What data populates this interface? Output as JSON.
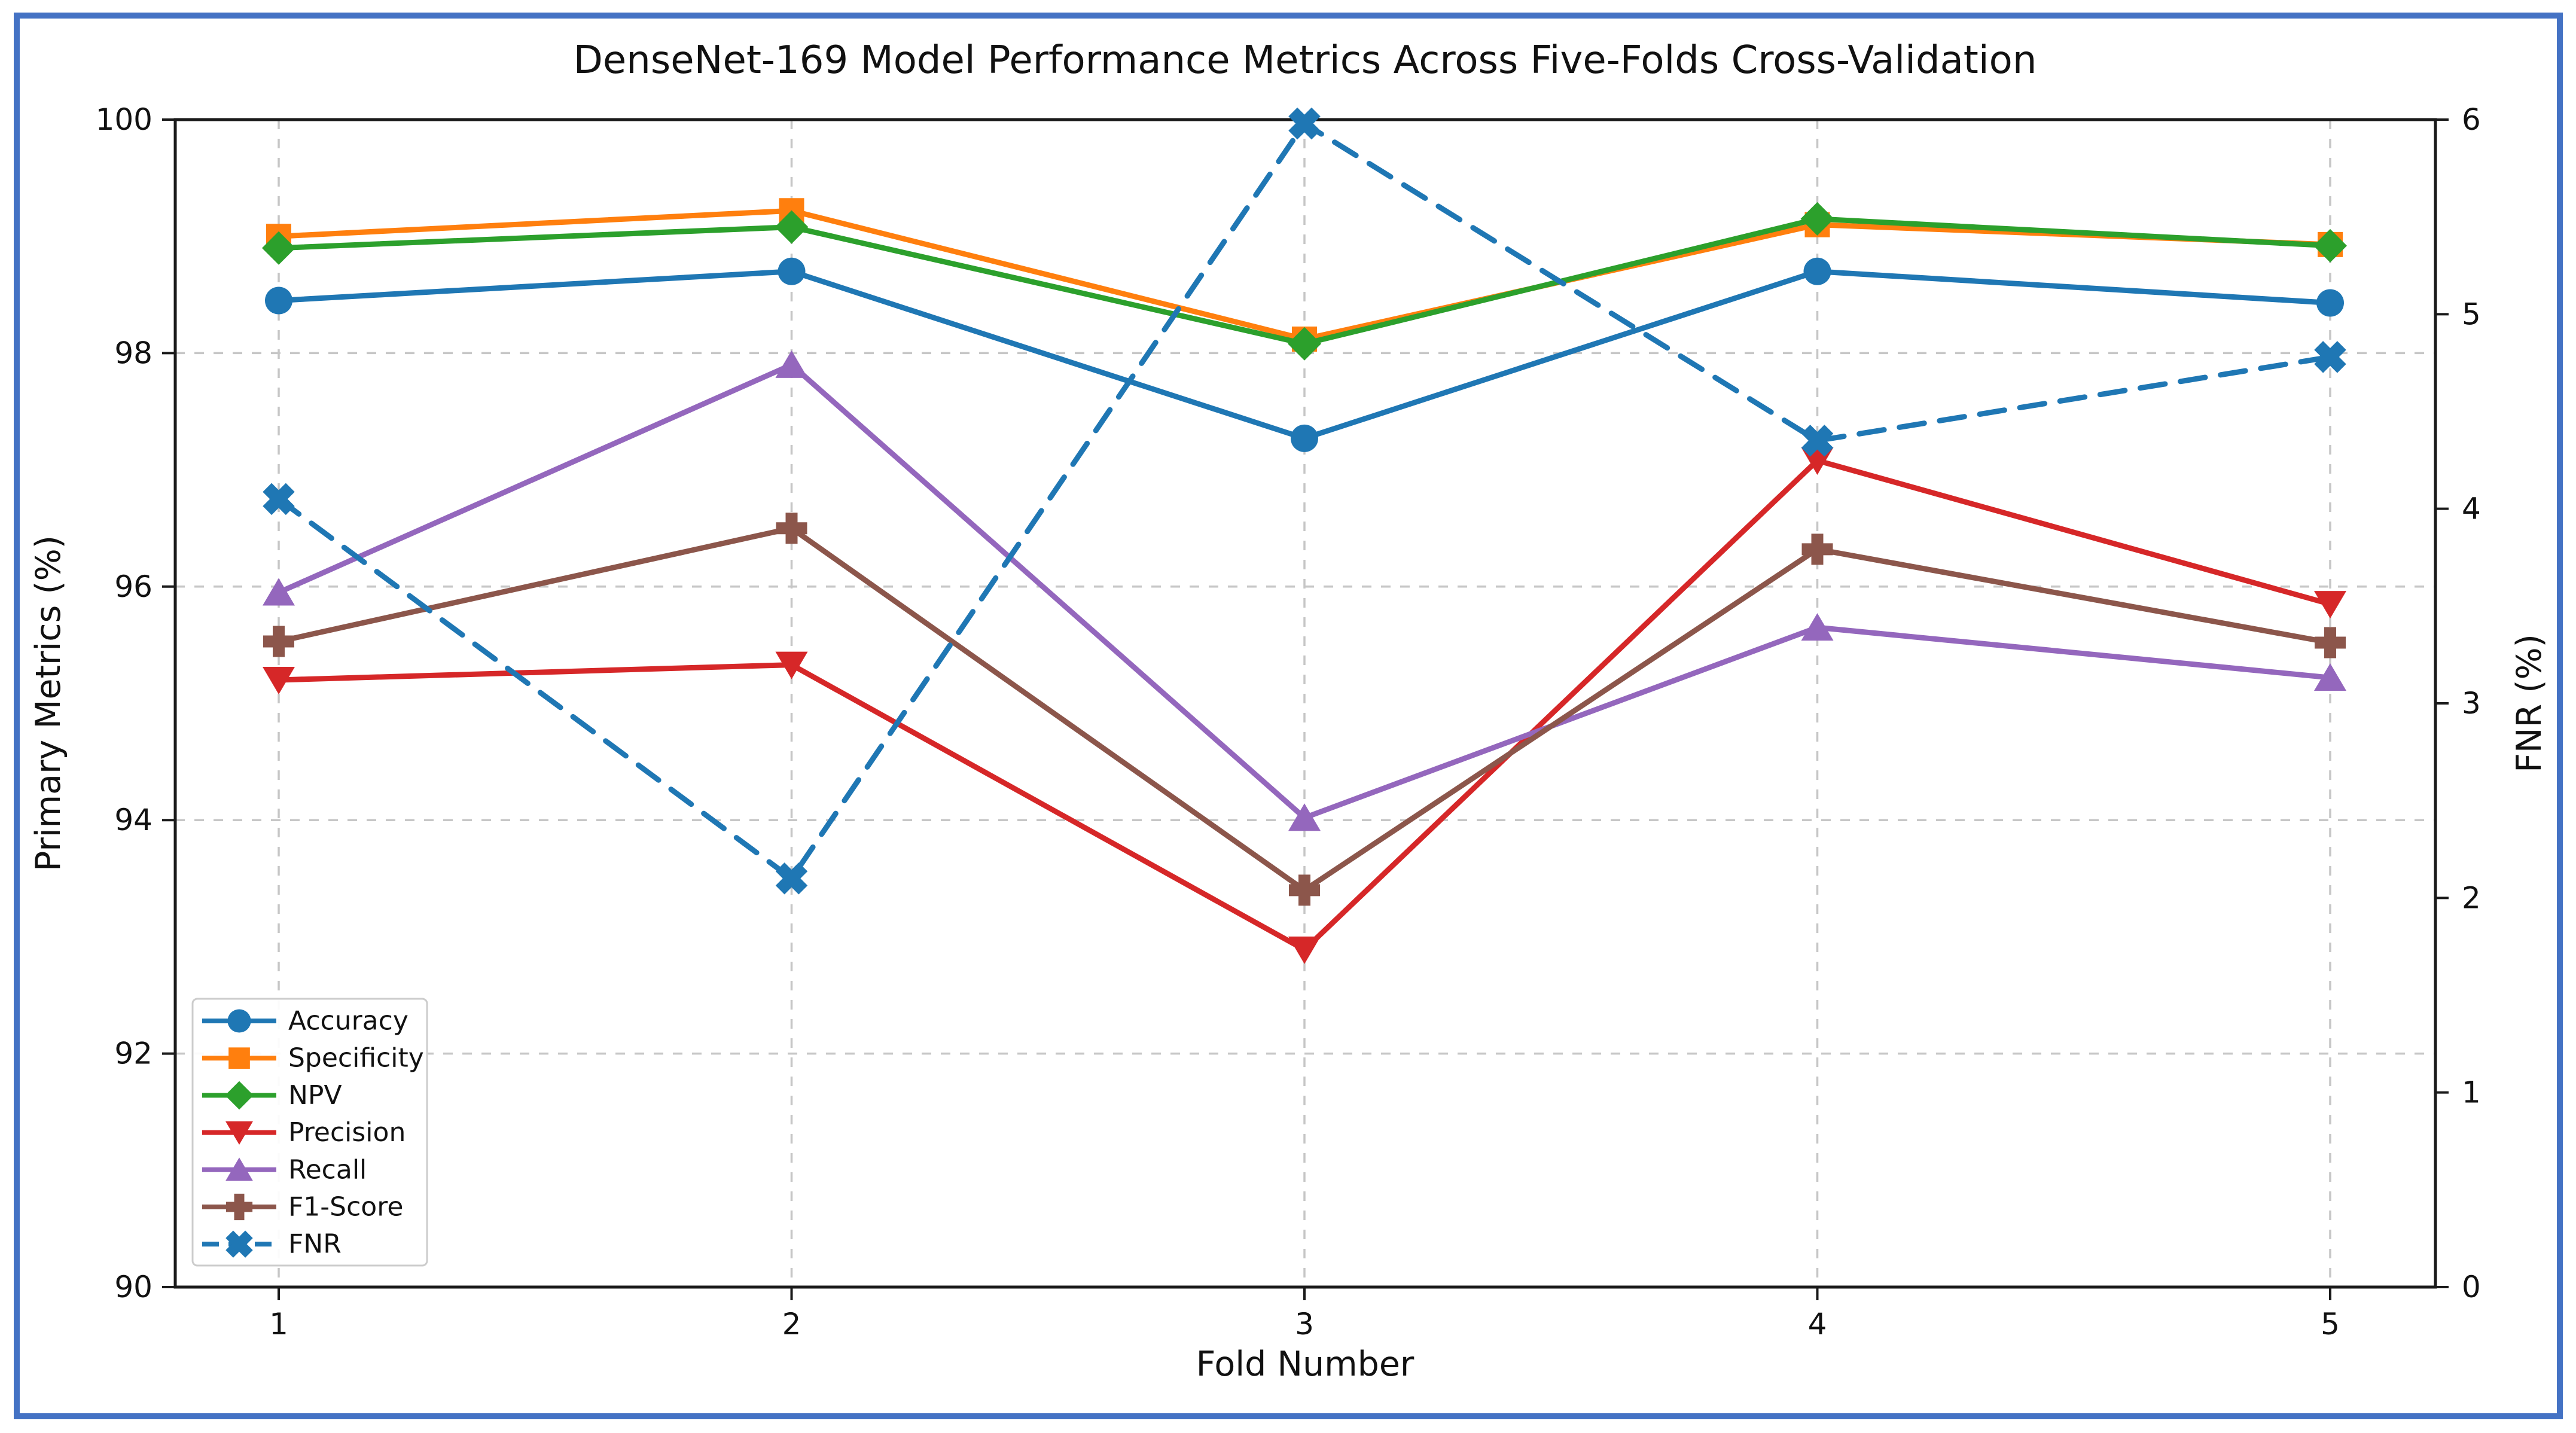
{
  "figure": {
    "background": "#ffffff",
    "border_color": "#4472c4",
    "spine_color": "#1a1a1a",
    "grid_color": "#c6c6c6"
  },
  "chart_data": {
    "type": "line",
    "title": "DenseNet-169 Model Performance Metrics Across Five-Folds Cross-Validation",
    "xlabel": "Fold Number",
    "ylabel_left": "Primary Metrics (%)",
    "ylabel_right": "FNR (%)",
    "x": [
      1,
      2,
      3,
      4,
      5
    ],
    "x_tick_labels": [
      "1",
      "2",
      "3",
      "4",
      "5"
    ],
    "ylim_left": [
      90,
      100
    ],
    "yticks_left": [
      90,
      92,
      94,
      96,
      98,
      100
    ],
    "ylim_right": [
      0,
      6
    ],
    "yticks_right": [
      0,
      1,
      2,
      3,
      4,
      5,
      6
    ],
    "grid": true,
    "legend_position": "lower-left",
    "series": [
      {
        "name": "Accuracy",
        "axis": "left",
        "color": "#1f77b4",
        "marker": "circle",
        "line": "solid",
        "values": [
          98.45,
          98.7,
          97.27,
          98.7,
          98.43
        ]
      },
      {
        "name": "Specificity",
        "axis": "left",
        "color": "#ff7f0e",
        "marker": "square",
        "line": "solid",
        "values": [
          99.0,
          99.22,
          98.12,
          99.1,
          98.93
        ]
      },
      {
        "name": "NPV",
        "axis": "left",
        "color": "#2ca02c",
        "marker": "diamond",
        "line": "solid",
        "values": [
          98.9,
          99.08,
          98.08,
          99.15,
          98.92
        ]
      },
      {
        "name": "Precision",
        "axis": "left",
        "color": "#d62728",
        "marker": "triangle-down",
        "line": "solid",
        "values": [
          95.2,
          95.33,
          92.89,
          97.08,
          95.85
        ]
      },
      {
        "name": "Recall",
        "axis": "left",
        "color": "#9467bd",
        "marker": "triangle-up",
        "line": "solid",
        "values": [
          95.95,
          97.9,
          94.02,
          95.65,
          95.22
        ]
      },
      {
        "name": "F1-Score",
        "axis": "left",
        "color": "#8c564b",
        "marker": "plus",
        "line": "solid",
        "values": [
          95.53,
          96.5,
          93.4,
          96.32,
          95.52
        ]
      },
      {
        "name": "FNR",
        "axis": "right",
        "color": "#1f77b4",
        "marker": "x",
        "line": "dashed",
        "values": [
          4.05,
          2.1,
          5.98,
          4.35,
          4.78
        ]
      }
    ]
  }
}
